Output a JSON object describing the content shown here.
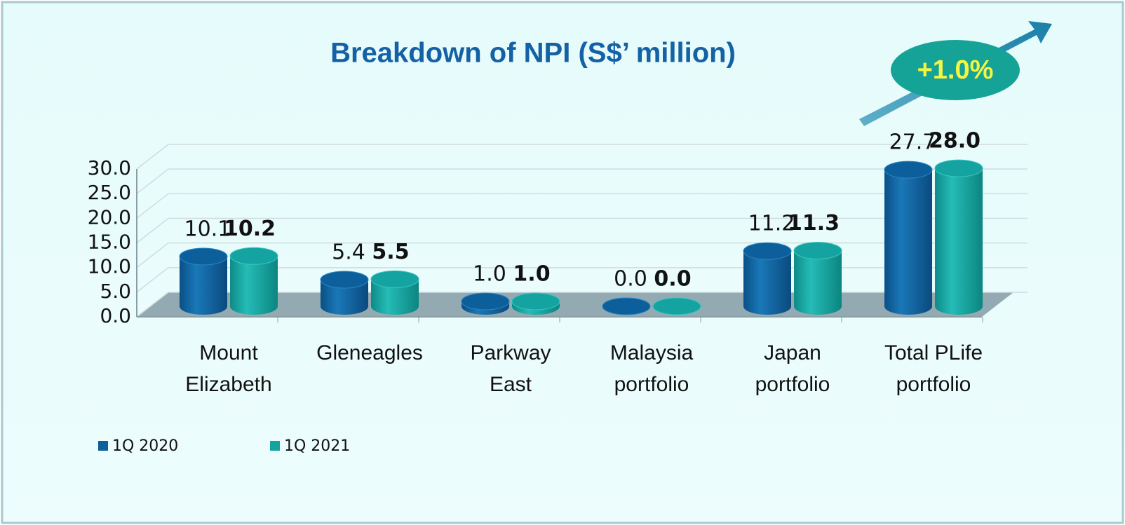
{
  "chart_data": {
    "type": "bar3d",
    "title": "Breakdown of NPI (S$’ million)",
    "annotation": "+1.0%",
    "categories": [
      [
        "Mount",
        "Elizabeth"
      ],
      [
        "Gleneagles"
      ],
      [
        "Parkway",
        "East"
      ],
      [
        "Malaysia",
        "portfolio"
      ],
      [
        "Japan",
        "portfolio"
      ],
      [
        "Total PLife",
        "portfolio"
      ]
    ],
    "series": [
      {
        "name": "1Q 2020",
        "color": "#0d5f9c",
        "values": [
          10.1,
          5.4,
          1.0,
          0.0,
          11.2,
          27.7
        ],
        "value_labels": [
          "10.1",
          "5.4",
          "1.0",
          "0.0",
          "11.2",
          "27.7"
        ]
      },
      {
        "name": "1Q 2021",
        "color": "#14a3a0",
        "values": [
          10.2,
          5.5,
          1.0,
          0.0,
          11.3,
          28.0
        ],
        "value_labels": [
          "10.2",
          "5.5",
          "1.0",
          "0.0",
          "11.3",
          "28.0"
        ]
      }
    ],
    "ylim": [
      0,
      30
    ],
    "yticks": [
      {
        "value": 0,
        "label": "0.0"
      },
      {
        "value": 5,
        "label": "5.0"
      },
      {
        "value": 10,
        "label": "10.0"
      },
      {
        "value": 15,
        "label": "15.0"
      },
      {
        "value": 20,
        "label": "20.0"
      },
      {
        "value": 25,
        "label": "25.0"
      },
      {
        "value": 30,
        "label": "30.0"
      }
    ],
    "grid": true,
    "legend": "bottom-left"
  }
}
